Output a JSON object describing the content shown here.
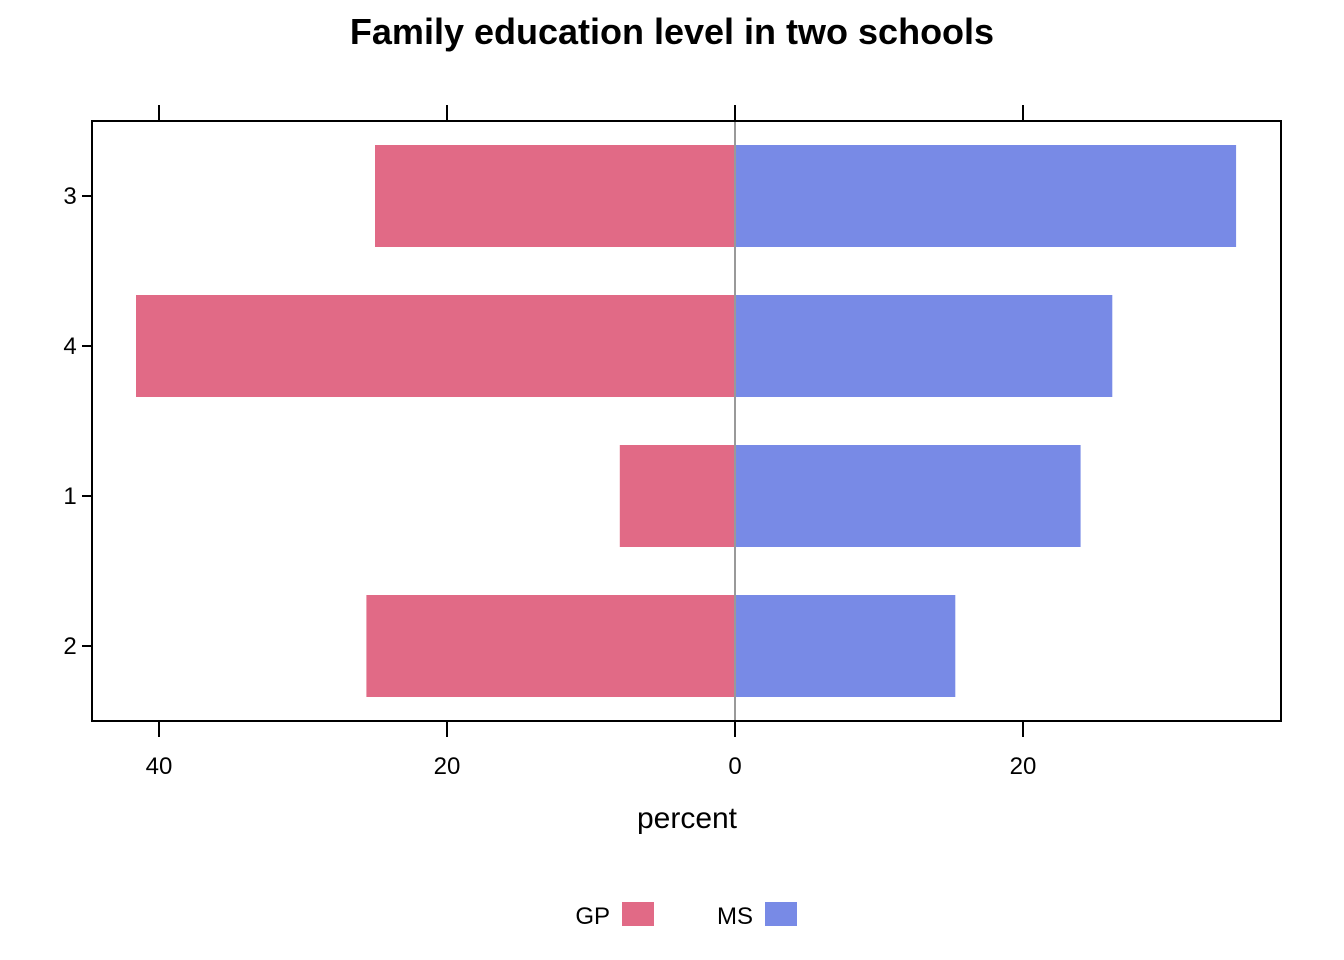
{
  "chart_data": {
    "type": "bar",
    "orientation": "horizontal-diverging",
    "title": "Family education level in two schools",
    "xlabel": "percent",
    "ylabel": "",
    "categories": [
      "3",
      "4",
      "1",
      "2"
    ],
    "series": [
      {
        "name": "GP",
        "side": "left",
        "color": "#E16A86",
        "values": [
          25,
          41.6,
          8,
          25.6
        ]
      },
      {
        "name": "MS",
        "side": "right",
        "color": "#788AE6",
        "values": [
          34.8,
          26.2,
          24,
          15.3
        ]
      }
    ],
    "xlim": [
      -45.5,
      38.3
    ],
    "xticks": [
      -40,
      -20,
      0,
      20
    ],
    "xtick_labels": [
      "40",
      "20",
      "0",
      "20"
    ],
    "grid": false,
    "center_line": true,
    "legend": "bottom"
  }
}
